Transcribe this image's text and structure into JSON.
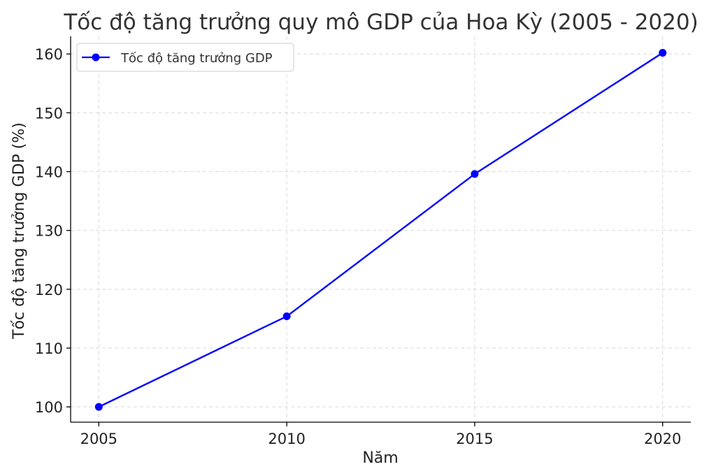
{
  "chart_data": {
    "type": "line",
    "title": "Tốc độ tăng trưởng quy mô GDP của Hoa Kỳ (2005 - 2020)",
    "xlabel": "Năm",
    "ylabel": "Tốc độ tăng trưởng GDP (%)",
    "x": [
      2005,
      2010,
      2015,
      2020
    ],
    "x_tick_labels": [
      "2005",
      "2010",
      "2015",
      "2020"
    ],
    "xlim": [
      2004.25,
      2020.75
    ],
    "ylim": [
      97.4,
      163.0
    ],
    "y_ticks": [
      100,
      110,
      120,
      130,
      140,
      150,
      160
    ],
    "y_tick_labels": [
      "100",
      "110",
      "120",
      "130",
      "140",
      "150",
      "160"
    ],
    "grid": true,
    "legend_position": "top-left",
    "series": [
      {
        "name": "Tốc độ tăng trưởng GDP",
        "values": [
          100.0,
          115.4,
          139.6,
          160.2
        ],
        "color": "#0000ff",
        "marker": "circle"
      }
    ]
  }
}
